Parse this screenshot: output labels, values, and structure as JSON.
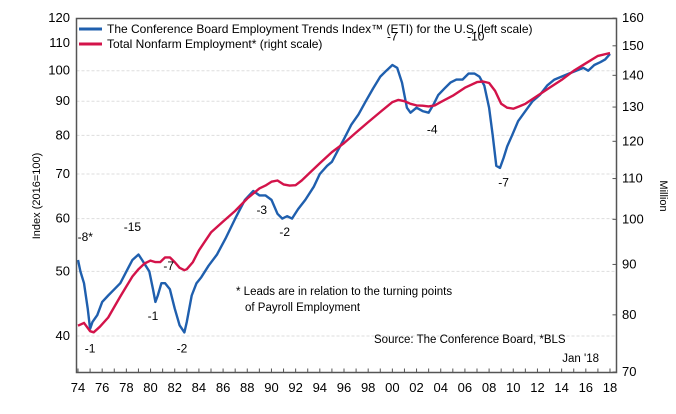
{
  "chart_data": {
    "type": "line",
    "title": "",
    "xlabel": "",
    "ylabel_left": "Index (2016=100)",
    "ylabel_right": "Million",
    "y_left_scale": "log",
    "y_right_scale": "log",
    "ylim_left": [
      35,
      120
    ],
    "ylim_right": [
      70,
      160
    ],
    "xlim": [
      1974,
      2018.2
    ],
    "grid": "horizontal-dashed",
    "x_tick_labels": [
      "74",
      "76",
      "78",
      "80",
      "82",
      "84",
      "86",
      "88",
      "90",
      "92",
      "94",
      "96",
      "98",
      "00",
      "02",
      "04",
      "06",
      "08",
      "10",
      "12",
      "14",
      "16",
      "18"
    ],
    "x_ticks": [
      1974,
      1976,
      1978,
      1980,
      1982,
      1984,
      1986,
      1988,
      1990,
      1992,
      1994,
      1996,
      1998,
      2000,
      2002,
      2004,
      2006,
      2008,
      2010,
      2012,
      2014,
      2016,
      2018
    ],
    "y_left_ticks": [
      40,
      50,
      60,
      70,
      80,
      90,
      100,
      110,
      120
    ],
    "y_right_ticks": [
      70,
      80,
      90,
      100,
      110,
      120,
      130,
      140,
      150,
      160
    ],
    "legend_position": "top-left",
    "series": [
      {
        "name": "The Conference Board Employment Trends Index™ (ETI) for the U.S.(left scale)",
        "axis": "left",
        "color": "#1f5fae",
        "x": [
          1974.0,
          1974.2,
          1974.5,
          1974.8,
          1975.0,
          1975.2,
          1975.6,
          1976.0,
          1976.5,
          1977.0,
          1977.5,
          1978.0,
          1978.5,
          1979.0,
          1979.3,
          1979.6,
          1979.9,
          1980.2,
          1980.4,
          1980.6,
          1980.9,
          1981.2,
          1981.6,
          1982.0,
          1982.4,
          1982.8,
          1983.0,
          1983.4,
          1983.8,
          1984.2,
          1984.8,
          1985.5,
          1986.2,
          1987.0,
          1987.8,
          1988.5,
          1989.0,
          1989.5,
          1990.0,
          1990.5,
          1990.9,
          1991.3,
          1991.7,
          1992.2,
          1992.8,
          1993.5,
          1994.0,
          1994.6,
          1995.0,
          1995.5,
          1996.0,
          1996.6,
          1997.2,
          1997.8,
          1998.4,
          1999.0,
          1999.5,
          2000.0,
          2000.4,
          2000.8,
          2001.2,
          2001.5,
          2002.0,
          2002.5,
          2003.0,
          2003.4,
          2003.8,
          2004.3,
          2004.8,
          2005.3,
          2005.8,
          2006.3,
          2006.8,
          2007.2,
          2007.6,
          2008.0,
          2008.3,
          2008.6,
          2008.9,
          2009.2,
          2009.5,
          2009.9,
          2010.4,
          2011.0,
          2011.6,
          2012.2,
          2012.8,
          2013.4,
          2014.0,
          2014.6,
          2015.2,
          2015.8,
          2016.2,
          2016.7,
          2017.2,
          2017.6,
          2018.0
        ],
        "values": [
          52,
          50,
          48,
          44,
          41,
          42,
          43,
          45,
          46,
          47,
          48,
          50,
          52,
          53,
          52,
          51,
          50,
          47,
          45,
          46,
          48,
          48,
          47,
          44,
          41.5,
          40.5,
          42,
          46,
          48,
          49,
          51,
          53,
          56,
          60,
          64,
          66,
          65,
          65,
          64,
          61,
          60,
          60.5,
          60,
          62,
          64,
          67,
          70,
          72,
          73,
          76,
          79,
          83,
          86,
          90,
          94,
          98,
          100,
          102,
          101,
          96,
          88,
          86.5,
          88,
          87,
          86.5,
          89,
          92,
          94,
          96,
          97,
          97,
          99,
          99,
          98,
          95,
          88,
          80,
          72,
          71.5,
          74,
          77,
          80,
          84,
          87,
          90,
          92,
          95,
          97,
          98,
          99,
          100,
          101,
          100,
          102,
          103,
          104,
          106
        ]
      },
      {
        "name": "Total Nonfarm Employment* (right scale)",
        "axis": "right",
        "color": "#d3134a",
        "x": [
          1974.0,
          1974.5,
          1975.0,
          1975.3,
          1975.8,
          1976.5,
          1977.0,
          1977.5,
          1978.0,
          1978.5,
          1979.0,
          1979.5,
          1980.0,
          1980.4,
          1980.8,
          1981.2,
          1981.6,
          1982.0,
          1982.4,
          1982.8,
          1983.0,
          1983.5,
          1984.0,
          1984.5,
          1985.0,
          1986.0,
          1987.0,
          1988.0,
          1989.0,
          1989.5,
          1990.0,
          1990.5,
          1991.0,
          1991.5,
          1992.0,
          1992.5,
          1993.0,
          1994.0,
          1995.0,
          1996.0,
          1997.0,
          1998.0,
          1999.0,
          2000.0,
          2000.5,
          2001.0,
          2001.5,
          2002.0,
          2002.5,
          2003.0,
          2003.5,
          2004.0,
          2005.0,
          2006.0,
          2007.0,
          2007.5,
          2008.0,
          2008.5,
          2009.0,
          2009.5,
          2010.0,
          2010.5,
          2011.0,
          2012.0,
          2013.0,
          2014.0,
          2015.0,
          2016.0,
          2017.0,
          2018.0
        ],
        "values": [
          78.0,
          78.5,
          77.0,
          76.8,
          77.8,
          79.5,
          81.5,
          83.5,
          85.5,
          87.5,
          89.0,
          90.2,
          90.8,
          90.5,
          90.5,
          91.5,
          91.5,
          90.5,
          89.3,
          88.8,
          89.0,
          90.5,
          93.0,
          95.0,
          97.0,
          99.5,
          102.0,
          105.0,
          107.5,
          108.2,
          109.2,
          109.5,
          108.5,
          108.2,
          108.3,
          109.5,
          111.0,
          114.0,
          117.0,
          119.5,
          122.5,
          125.5,
          128.5,
          131.5,
          132.2,
          131.8,
          131.0,
          130.5,
          130.4,
          130.2,
          130.5,
          131.5,
          133.5,
          136.0,
          137.8,
          138.0,
          137.5,
          135.0,
          131.0,
          129.8,
          129.5,
          130.2,
          131.0,
          133.5,
          136.0,
          138.5,
          141.5,
          144.0,
          146.5,
          147.5
        ]
      }
    ],
    "annotations": [
      {
        "text": "-8*",
        "x": 1974.6,
        "y_left": 55.5
      },
      {
        "text": "-1",
        "x": 1975.0,
        "y_left": 37.8
      },
      {
        "text": "-15",
        "x": 1978.5,
        "y_left": 57.5
      },
      {
        "text": "-1",
        "x": 1980.2,
        "y_left": 42.3
      },
      {
        "text": "-7",
        "x": 1981.5,
        "y_left": 50.2
      },
      {
        "text": "-2",
        "x": 1982.6,
        "y_left": 37.8
      },
      {
        "text": "-3",
        "x": 1989.2,
        "y_left": 61.0
      },
      {
        "text": "-2",
        "x": 1991.1,
        "y_left": 56.5
      },
      {
        "text": "-7",
        "x": 2000.0,
        "y_left": 111.0
      },
      {
        "text": "-4",
        "x": 2003.3,
        "y_left": 80.5
      },
      {
        "text": "-10",
        "x": 2006.9,
        "y_left": 111.0
      },
      {
        "text": "-7",
        "x": 2009.2,
        "y_left": 67.0
      }
    ]
  },
  "legend": {
    "items": [
      {
        "label": "The Conference Board Employment Trends Index™ (ETI) for the U.S.(left scale)",
        "color": "#1f5fae"
      },
      {
        "label": "Total Nonfarm Employment* (right scale)",
        "color": "#d3134a"
      }
    ]
  },
  "notes": {
    "leads_line1": "* Leads are in relation to the turning points",
    "leads_line2": "of Payroll Employment",
    "source": "Source: The Conference Board, *BLS",
    "date": "Jan '18"
  }
}
